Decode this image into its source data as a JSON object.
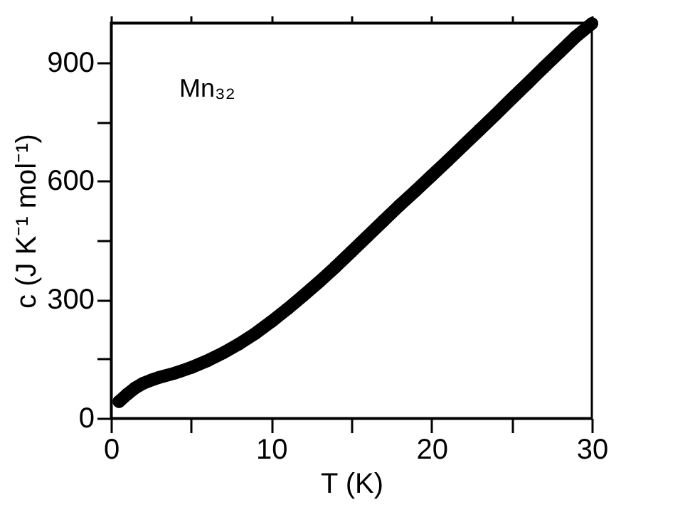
{
  "chart_data": {
    "type": "line",
    "xlabel": "T (K)",
    "ylabel": "c (J K⁻¹ mol⁻¹)",
    "annotations": [
      "Mn₃₂"
    ],
    "x": [
      0.5,
      1,
      1.5,
      2,
      2.5,
      3,
      4,
      5,
      6,
      7,
      8,
      9,
      10,
      11,
      12,
      13,
      14,
      15,
      16,
      17,
      18,
      19,
      20,
      21,
      22,
      23,
      24,
      25,
      26,
      27,
      28,
      29,
      30
    ],
    "series": [
      {
        "color": "#000000",
        "values": [
          42,
          60,
          76,
          88,
          96,
          103,
          114,
          128,
          145,
          165,
          188,
          214,
          244,
          276,
          310,
          345,
          382,
          421,
          460,
          499,
          538,
          575,
          613,
          651,
          690,
          729,
          768,
          808,
          847,
          887,
          926,
          965,
          998
        ]
      }
    ],
    "xlim": [
      0,
      30
    ],
    "xticks": [
      0,
      {
        "value": 5,
        "label": null
      },
      10,
      {
        "value": 15,
        "label": null
      },
      20,
      {
        "value": 25,
        "label": null
      },
      30
    ],
    "ylim": [
      0,
      1000
    ],
    "yticks": [
      0,
      {
        "value": 150,
        "label": null
      },
      300,
      {
        "value": 450,
        "label": null
      },
      600,
      {
        "value": 750,
        "label": null
      },
      900
    ],
    "marker": "circle",
    "line_style": "solid",
    "grid": false
  }
}
